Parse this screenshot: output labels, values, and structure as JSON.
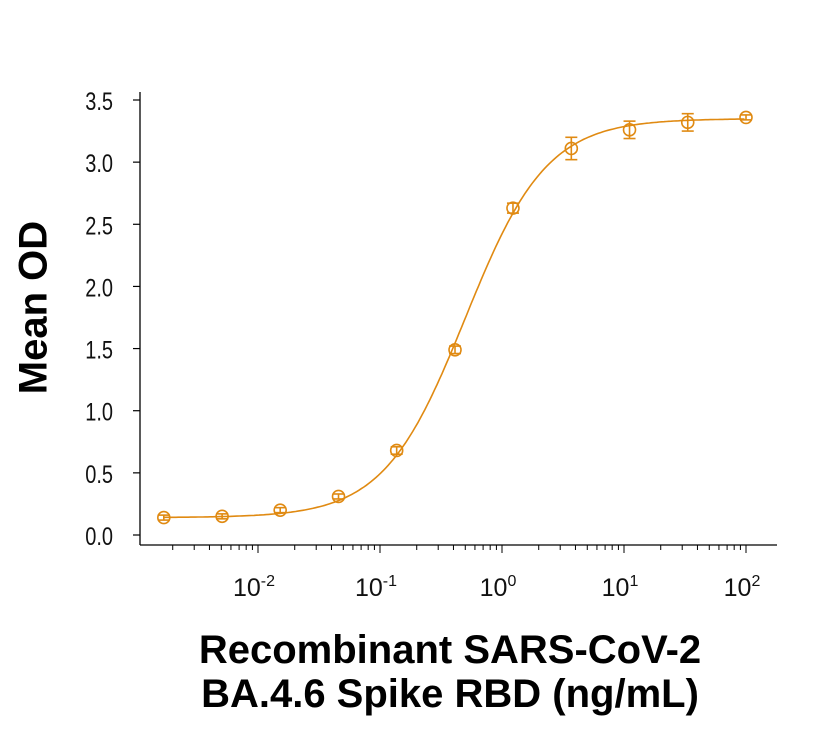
{
  "chart_data": {
    "type": "scatter",
    "xlabel_line1": "Recombinant SARS-CoV-2",
    "xlabel_line2": "BA.4.6 Spike RBD (ng/mL)",
    "ylabel": "Mean OD",
    "xscale": "log",
    "xlim": [
      0.001,
      150
    ],
    "ylim": [
      0,
      3.5
    ],
    "x_ticks": [
      0.01,
      0.1,
      1,
      10,
      100
    ],
    "x_tick_labels": [
      {
        "base": "10",
        "exp": "-2"
      },
      {
        "base": "10",
        "exp": "-1"
      },
      {
        "base": "10",
        "exp": "0"
      },
      {
        "base": "10",
        "exp": "1"
      },
      {
        "base": "10",
        "exp": "2"
      }
    ],
    "y_ticks": [
      0.0,
      0.5,
      1.0,
      1.5,
      2.0,
      2.5,
      3.0,
      3.5
    ],
    "y_tick_labels": [
      "0.0",
      "0.5",
      "1.0",
      "1.5",
      "2.0",
      "2.5",
      "3.0",
      "3.5"
    ],
    "grid": false,
    "color": "#E08A12",
    "marker": "open-circle",
    "fit": "four-parameter logistic curve",
    "series": [
      {
        "x": [
          0.00169,
          0.00508,
          0.0152,
          0.0457,
          0.137,
          0.412,
          1.23,
          3.7,
          11.1,
          33.3,
          100
        ],
        "y": [
          0.14,
          0.15,
          0.2,
          0.31,
          0.68,
          1.49,
          2.63,
          3.11,
          3.26,
          3.32,
          3.36
        ],
        "error": [
          0.02,
          0.02,
          0.02,
          0.02,
          0.03,
          0.03,
          0.04,
          0.09,
          0.07,
          0.07,
          0.02
        ]
      }
    ]
  }
}
